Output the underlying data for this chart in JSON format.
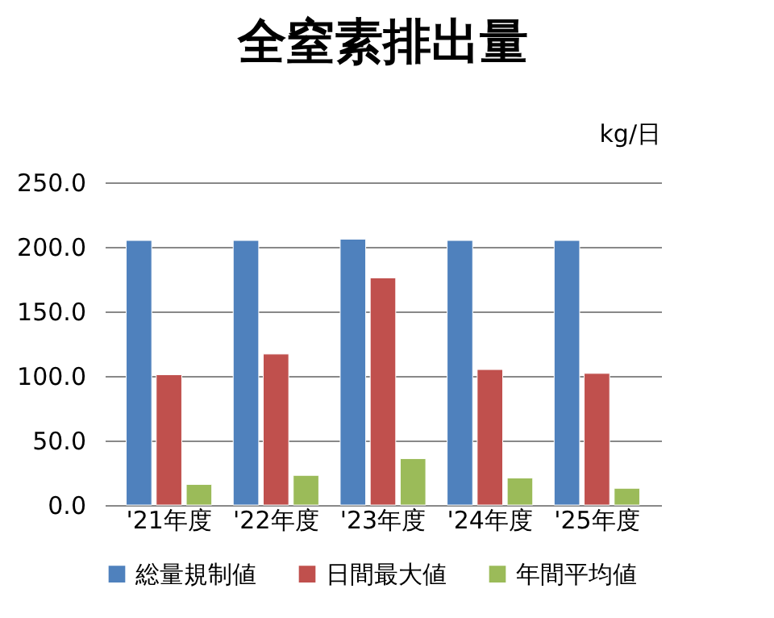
{
  "chart_data": {
    "type": "bar",
    "title": "全窒素排出量",
    "annotations": [
      "kg/日"
    ],
    "categories": [
      "'21年度",
      "'22年度",
      "'23年度",
      "'24年度",
      "'25年度"
    ],
    "series": [
      {
        "name": "総量規制値",
        "color": "#4f81bd",
        "values": [
          205,
          205,
          206,
          205,
          205
        ]
      },
      {
        "name": "日間最大値",
        "color": "#c0504d",
        "values": [
          101,
          117,
          176,
          105,
          102
        ]
      },
      {
        "name": "年間平均値",
        "color": "#9bbb59",
        "values": [
          16,
          23,
          36,
          21,
          13
        ]
      }
    ],
    "ylim": [
      0,
      250
    ],
    "yticks": [
      {
        "value": 0,
        "label": "0.0"
      },
      {
        "value": 50,
        "label": "50.0"
      },
      {
        "value": 100,
        "label": "100.0"
      },
      {
        "value": 150,
        "label": "150.0"
      },
      {
        "value": 200,
        "label": "200.0"
      },
      {
        "value": 250,
        "label": "250.0"
      }
    ],
    "grid": "y",
    "legend": "bottom"
  }
}
